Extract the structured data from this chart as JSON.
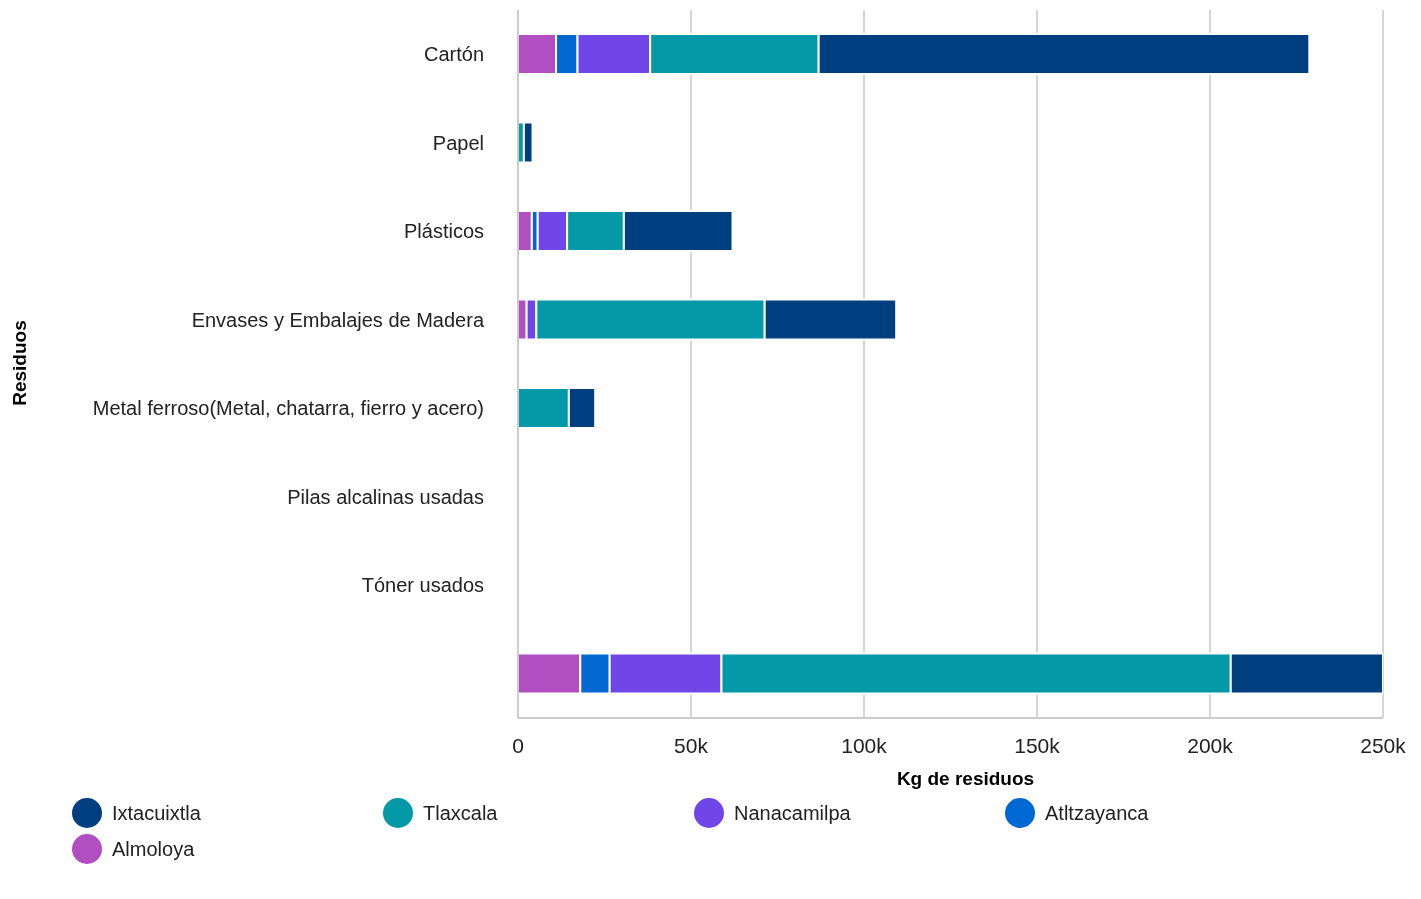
{
  "chart_data": {
    "type": "bar",
    "orientation": "horizontal",
    "stacked": true,
    "ylabel": "Residuos",
    "xlabel": "Kg de residuos",
    "categories": [
      "Cartón",
      "Papel",
      "Plásticos",
      "Envases y Embalajes de Madera",
      "Metal ferroso(Metal, chatarra, fierro y acero)",
      "Pilas alcalinas usadas",
      "Tóner usados",
      null
    ],
    "series": [
      {
        "name": "Almoloya",
        "color": "#b14fc2",
        "values": [
          11000,
          0,
          4000,
          2500,
          0,
          0,
          0,
          18000
        ]
      },
      {
        "name": "Atltzayanca",
        "color": "#0068d2",
        "values": [
          6200,
          0,
          1700,
          0,
          0,
          0,
          0,
          8500
        ]
      },
      {
        "name": "Nanacamilpa",
        "color": "#7046e8",
        "values": [
          21000,
          0,
          8500,
          2800,
          0,
          0,
          0,
          32300
        ]
      },
      {
        "name": "Tlaxcala",
        "color": "#0399a6",
        "values": [
          48700,
          1700,
          16400,
          66000,
          14700,
          0,
          0,
          147200
        ]
      },
      {
        "name": "Ixtacuixtla",
        "color": "#003f7f",
        "values": [
          141800,
          2500,
          31400,
          38000,
          7600,
          0,
          0,
          44000
        ]
      }
    ],
    "xlim": [
      0,
      250000
    ],
    "xticks": [
      {
        "value": 0,
        "label": "0"
      },
      {
        "value": 50000,
        "label": "50k"
      },
      {
        "value": 100000,
        "label": "100k"
      },
      {
        "value": 150000,
        "label": "150k"
      },
      {
        "value": 200000,
        "label": "200k"
      },
      {
        "value": 250000,
        "label": "250k"
      }
    ],
    "grid": "x",
    "legend": "bottom"
  }
}
